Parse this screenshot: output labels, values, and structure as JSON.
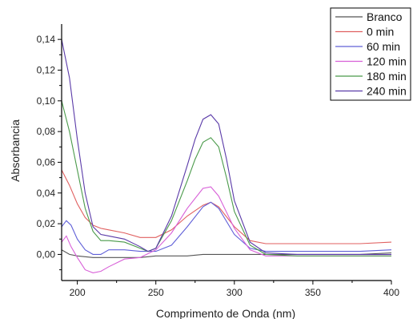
{
  "chart_data": {
    "type": "line",
    "title": "",
    "xlabel": "Comprimento de Onda (nm)",
    "ylabel": "Absorbancia",
    "xlim": [
      190,
      400
    ],
    "ylim": [
      -0.017,
      0.15
    ],
    "xticks": [
      200,
      250,
      300,
      350,
      400
    ],
    "xtick_labels": [
      "200",
      "250",
      "300",
      "350",
      "400"
    ],
    "yticks": [
      0.0,
      0.02,
      0.04,
      0.06,
      0.08,
      0.1,
      0.12,
      0.14
    ],
    "ytick_labels": [
      "0,00",
      "0,02",
      "0,04",
      "0,06",
      "0,08",
      "0,10",
      "0,12",
      "0,14"
    ],
    "grid": false,
    "legend_position": "top-right",
    "series": [
      {
        "name": "Branco",
        "color": "#555555",
        "x": [
          190,
          195,
          200,
          210,
          220,
          230,
          240,
          250,
          260,
          270,
          280,
          290,
          300,
          320,
          340,
          360,
          380,
          400
        ],
        "y": [
          0.003,
          0.0,
          -0.001,
          -0.002,
          -0.002,
          -0.002,
          -0.002,
          -0.001,
          -0.001,
          -0.001,
          0.0,
          0.0,
          0.0,
          0.0,
          0.0,
          0.0,
          0.0,
          0.001
        ]
      },
      {
        "name": "0 min",
        "color": "#e06060",
        "x": [
          190,
          195,
          200,
          205,
          210,
          215,
          220,
          230,
          240,
          250,
          260,
          270,
          280,
          285,
          290,
          300,
          310,
          320,
          340,
          360,
          380,
          400
        ],
        "y": [
          0.055,
          0.045,
          0.033,
          0.024,
          0.019,
          0.017,
          0.016,
          0.014,
          0.011,
          0.011,
          0.016,
          0.025,
          0.032,
          0.034,
          0.031,
          0.018,
          0.009,
          0.007,
          0.007,
          0.007,
          0.007,
          0.008
        ]
      },
      {
        "name": "60 min",
        "color": "#6060d8",
        "x": [
          190,
          193,
          196,
          200,
          205,
          210,
          215,
          220,
          230,
          240,
          250,
          260,
          270,
          280,
          285,
          290,
          300,
          310,
          320,
          340,
          360,
          380,
          400
        ],
        "y": [
          0.018,
          0.022,
          0.019,
          0.01,
          0.003,
          0.0,
          0.0,
          0.003,
          0.003,
          0.002,
          0.002,
          0.006,
          0.018,
          0.031,
          0.034,
          0.03,
          0.013,
          0.004,
          0.002,
          0.002,
          0.002,
          0.002,
          0.003
        ]
      },
      {
        "name": "120 min",
        "color": "#d860d8",
        "x": [
          190,
          193,
          196,
          200,
          205,
          210,
          215,
          220,
          230,
          240,
          250,
          260,
          270,
          280,
          285,
          290,
          300,
          310,
          320,
          340,
          360,
          380,
          400
        ],
        "y": [
          0.008,
          0.012,
          0.005,
          -0.002,
          -0.01,
          -0.012,
          -0.011,
          -0.008,
          -0.003,
          -0.002,
          0.003,
          0.014,
          0.03,
          0.043,
          0.044,
          0.038,
          0.017,
          0.003,
          -0.001,
          -0.001,
          -0.001,
          -0.001,
          -0.001
        ]
      },
      {
        "name": "180 min",
        "color": "#4a9a4a",
        "x": [
          190,
          195,
          200,
          205,
          210,
          215,
          220,
          230,
          240,
          245,
          250,
          260,
          270,
          275,
          280,
          285,
          290,
          295,
          300,
          310,
          320,
          340,
          360,
          380,
          400
        ],
        "y": [
          0.1,
          0.08,
          0.055,
          0.03,
          0.015,
          0.009,
          0.009,
          0.008,
          0.004,
          0.002,
          0.004,
          0.022,
          0.048,
          0.062,
          0.073,
          0.076,
          0.07,
          0.05,
          0.028,
          0.006,
          0.0,
          -0.001,
          -0.001,
          -0.001,
          -0.001
        ]
      },
      {
        "name": "240 min",
        "color": "#5a3aa8",
        "x": [
          190,
          195,
          200,
          205,
          210,
          215,
          220,
          230,
          240,
          245,
          250,
          260,
          270,
          275,
          280,
          285,
          290,
          295,
          300,
          310,
          320,
          340,
          360,
          380,
          400
        ],
        "y": [
          0.14,
          0.115,
          0.075,
          0.04,
          0.018,
          0.013,
          0.012,
          0.01,
          0.005,
          0.002,
          0.004,
          0.025,
          0.058,
          0.075,
          0.088,
          0.091,
          0.085,
          0.062,
          0.035,
          0.008,
          0.001,
          0.0,
          0.0,
          0.0,
          0.0
        ]
      }
    ]
  }
}
